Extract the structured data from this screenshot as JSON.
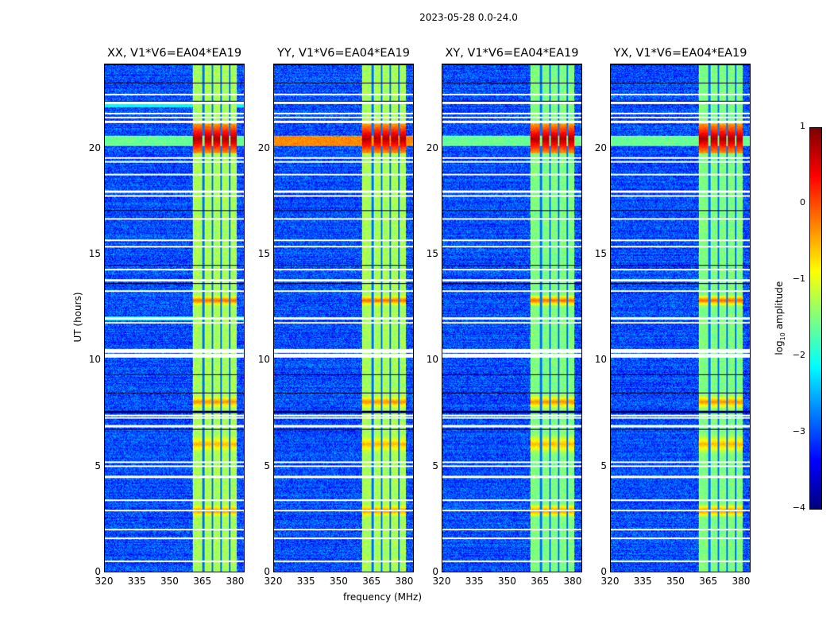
{
  "chart_data": {
    "type": "heatmap",
    "title": "2023-05-28 0.0-24.0",
    "panels": [
      {
        "title": "XX, V1*V6=EA04*EA19",
        "pol": "XX"
      },
      {
        "title": "YY, V1*V6=EA04*EA19",
        "pol": "YY"
      },
      {
        "title": "XY, V1*V6=EA04*EA19",
        "pol": "XY"
      },
      {
        "title": "YX, V1*V6=EA04*EA19",
        "pol": "YX"
      }
    ],
    "xlabel": "frequency (MHz)",
    "ylabel": "UT (hours)",
    "xlim": [
      320,
      384.4
    ],
    "ylim": [
      0,
      24
    ],
    "xticks": [
      "320",
      "335",
      "350",
      "365",
      "380"
    ],
    "xtick_values": [
      320,
      335,
      350,
      365,
      380
    ],
    "yticks": [
      "0",
      "5",
      "10",
      "15",
      "20"
    ],
    "ytick_values": [
      0,
      5,
      10,
      15,
      20
    ],
    "colorbar": {
      "label": "log10 amplitude",
      "label_main": "log",
      "label_sub": "10",
      "label_rest": " amplitude",
      "range": [
        -4,
        1
      ],
      "ticks": [
        "1",
        "0",
        "−1",
        "−2",
        "−3",
        "−4"
      ],
      "tick_values": [
        1,
        0,
        -1,
        -2,
        -3,
        -4
      ],
      "colormap": "jet"
    },
    "background_level": -3.0,
    "band": {
      "freq_range": [
        360.7,
        381.0
      ],
      "level": -1.3,
      "channel_edges": [
        365.5,
        369.6,
        373.6,
        377.7
      ]
    },
    "flagged_times_hours": [
      0.5,
      1.6,
      2.0,
      2.9,
      3.4,
      4.5,
      5.0,
      5.2,
      6.9,
      7.3,
      7.4,
      10.2,
      10.3,
      10.4,
      10.5,
      11.8,
      12.0,
      13.3,
      13.8,
      14.3,
      15.4,
      15.7,
      16.7,
      17.8,
      18.0,
      18.8,
      19.4,
      19.6,
      21.3,
      21.5,
      21.7,
      22.2,
      22.6
    ],
    "hot_events": [
      {
        "time_range": [
          19.8,
          21.2
        ],
        "peak": 0.8,
        "broadband": true
      },
      {
        "time_range": [
          12.6,
          13.1
        ],
        "peak": -0.1,
        "broadband": false
      },
      {
        "time_range": [
          2.6,
          3.2
        ],
        "peak": -0.2,
        "broadband": false
      },
      {
        "time_range": [
          7.7,
          8.4
        ],
        "peak": -0.3,
        "broadband": false
      },
      {
        "time_range": [
          5.5,
          6.6
        ],
        "peak": -0.5,
        "broadband": false
      }
    ]
  }
}
